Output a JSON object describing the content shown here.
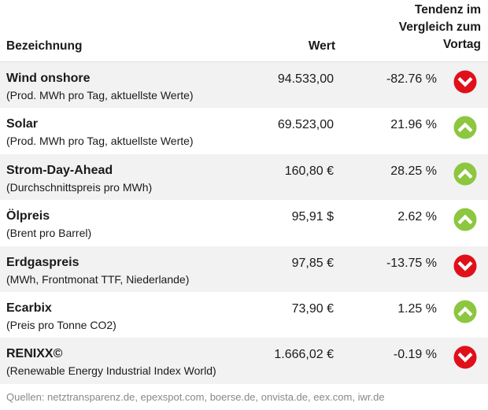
{
  "header": {
    "name_label": "Bezeichnung",
    "value_label": "Wert",
    "trend_line1": "Tendenz im",
    "trend_line2": "Vergleich zum",
    "trend_line3": "Vortag"
  },
  "rows": [
    {
      "name": "Wind onshore",
      "sub": "(Prod. MWh pro Tag, aktuellste Werte)",
      "value": "94.533,00",
      "change": "-82.76 %",
      "direction": "down"
    },
    {
      "name": "Solar",
      "sub": "(Prod. MWh pro Tag, aktuellste Werte)",
      "value": "69.523,00",
      "change": "21.96 %",
      "direction": "up"
    },
    {
      "name": "Strom-Day-Ahead",
      "sub": "(Durchschnittspreis pro MWh)",
      "value": "160,80 €",
      "change": "28.25 %",
      "direction": "up"
    },
    {
      "name": "Ölpreis",
      "sub": "(Brent pro Barrel)",
      "value": "95,91 $",
      "change": "2.62 %",
      "direction": "up"
    },
    {
      "name": "Erdgaspreis",
      "sub": "(MWh, Frontmonat TTF, Niederlande)",
      "value": "97,85 €",
      "change": "-13.75 %",
      "direction": "down"
    },
    {
      "name": "Ecarbix",
      "sub": "(Preis pro Tonne CO2)",
      "value": "73,90 €",
      "change": "1.25 %",
      "direction": "up"
    },
    {
      "name": "RENIXX©",
      "sub": "(Renewable Energy Industrial Index World)",
      "value": "1.666,02 €",
      "change": "-0.19 %",
      "direction": "down"
    }
  ],
  "footer": {
    "sources": "Quellen: netztransparenz.de, epexspot.com, boerse.de, onvista.de, eex.com, iwr.de"
  },
  "colors": {
    "up": "#8dc63f",
    "down": "#e0101a",
    "row_shade": "#f2f2f2"
  }
}
